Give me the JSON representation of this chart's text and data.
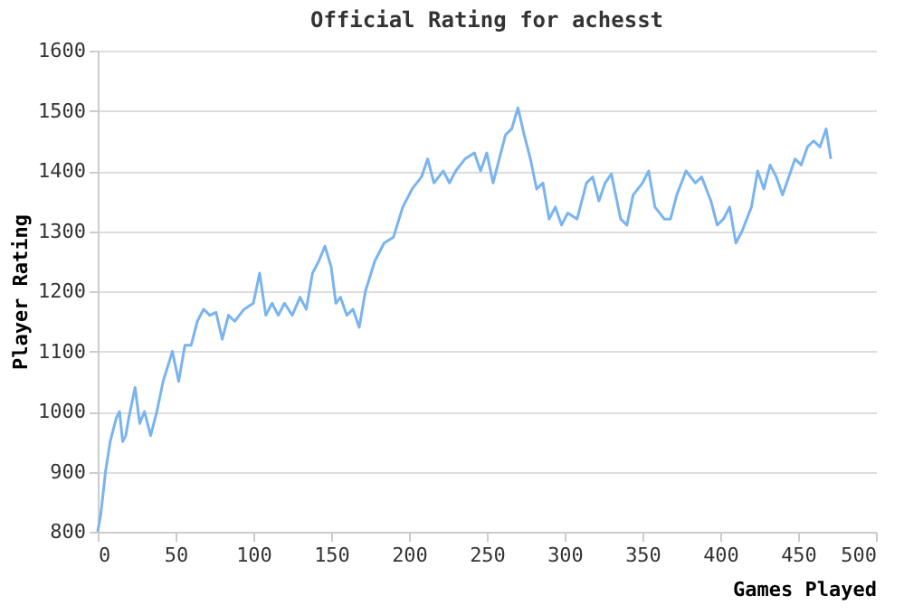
{
  "chart_data": {
    "type": "line",
    "title": "Official Rating for achesst",
    "xlabel": "Games Played",
    "ylabel": "Player Rating",
    "x": [
      0,
      2,
      5,
      8,
      12,
      14,
      16,
      18,
      20,
      24,
      27,
      30,
      34,
      38,
      42,
      48,
      52,
      56,
      60,
      64,
      68,
      72,
      76,
      80,
      84,
      88,
      94,
      100,
      104,
      108,
      112,
      116,
      120,
      125,
      130,
      134,
      138,
      142,
      146,
      150,
      153,
      156,
      160,
      164,
      168,
      172,
      178,
      184,
      190,
      196,
      202,
      208,
      212,
      216,
      222,
      226,
      230,
      236,
      242,
      246,
      250,
      254,
      258,
      262,
      266,
      270,
      274,
      278,
      282,
      286,
      290,
      294,
      298,
      302,
      308,
      314,
      318,
      322,
      326,
      330,
      336,
      340,
      344,
      350,
      354,
      358,
      364,
      368,
      372,
      378,
      384,
      388,
      394,
      398,
      402,
      406,
      410,
      414,
      420,
      424,
      428,
      432,
      436,
      440,
      444,
      448,
      452,
      456,
      460,
      464,
      468,
      471
    ],
    "series": [
      {
        "color": "#7ab4f0",
        "values": [
          800,
          830,
          900,
          950,
          990,
          1000,
          950,
          960,
          990,
          1040,
          980,
          1000,
          960,
          1000,
          1050,
          1100,
          1050,
          1110,
          1110,
          1150,
          1170,
          1160,
          1165,
          1120,
          1160,
          1150,
          1170,
          1180,
          1230,
          1160,
          1180,
          1160,
          1180,
          1160,
          1190,
          1170,
          1230,
          1250,
          1275,
          1240,
          1180,
          1190,
          1160,
          1170,
          1140,
          1200,
          1250,
          1280,
          1290,
          1340,
          1370,
          1390,
          1420,
          1380,
          1400,
          1380,
          1400,
          1420,
          1430,
          1400,
          1430,
          1380,
          1420,
          1460,
          1470,
          1505,
          1460,
          1420,
          1370,
          1380,
          1320,
          1340,
          1310,
          1330,
          1320,
          1380,
          1390,
          1350,
          1380,
          1395,
          1320,
          1310,
          1360,
          1380,
          1400,
          1340,
          1320,
          1320,
          1360,
          1400,
          1380,
          1390,
          1350,
          1310,
          1320,
          1340,
          1280,
          1300,
          1340,
          1400,
          1370,
          1410,
          1390,
          1360,
          1390,
          1420,
          1410,
          1440,
          1450,
          1440,
          1470,
          1420
        ]
      }
    ],
    "xlim": [
      0,
      500
    ],
    "xticks": [
      0,
      50,
      100,
      150,
      200,
      250,
      300,
      350,
      400,
      450,
      500
    ],
    "ylim": [
      800,
      1600
    ],
    "yticks": [
      800,
      900,
      1000,
      1100,
      1200,
      1300,
      1400,
      1500,
      1600
    ],
    "grid": "y",
    "line_style": "solid"
  }
}
